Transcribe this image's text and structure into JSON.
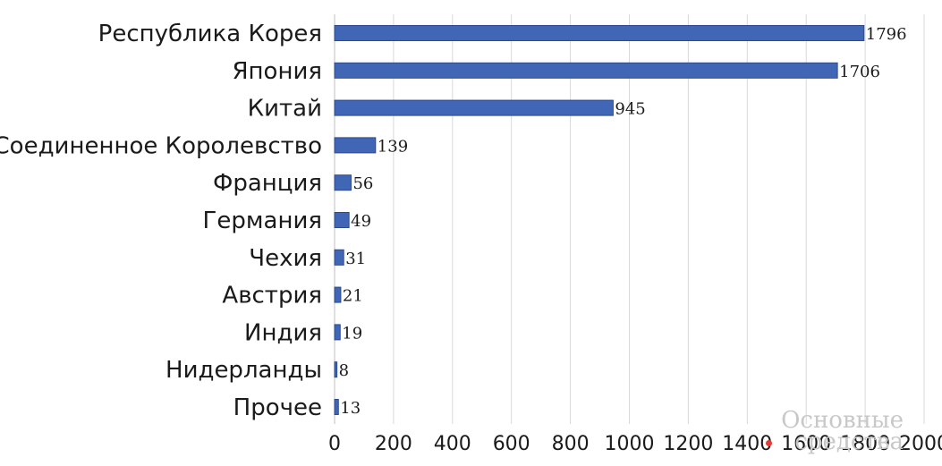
{
  "chart_data": {
    "type": "bar",
    "orientation": "horizontal",
    "categories": [
      "Республика Корея",
      "Япония",
      "Китай",
      "Соединенное Королевство",
      "Франция",
      "Германия",
      "Чехия",
      "Австрия",
      "Индия",
      "Нидерланды",
      "Прочее"
    ],
    "values": [
      1796,
      1706,
      945,
      139,
      56,
      49,
      31,
      21,
      19,
      8,
      13
    ],
    "x_ticks": [
      "0",
      "200",
      "400",
      "600",
      "800",
      "1000",
      "1200",
      "1400",
      "1600",
      "1800",
      "2000"
    ],
    "xlim": [
      0,
      2000
    ],
    "grid": "vertical",
    "legend": "none",
    "colors": {
      "bar": "#4066b5",
      "bar_edge": "#2c4a8c",
      "grid": "#d9d9d9",
      "watermark_dot": "#e23b3b"
    }
  },
  "watermark": {
    "line1": "Основные",
    "line2": "средства"
  }
}
